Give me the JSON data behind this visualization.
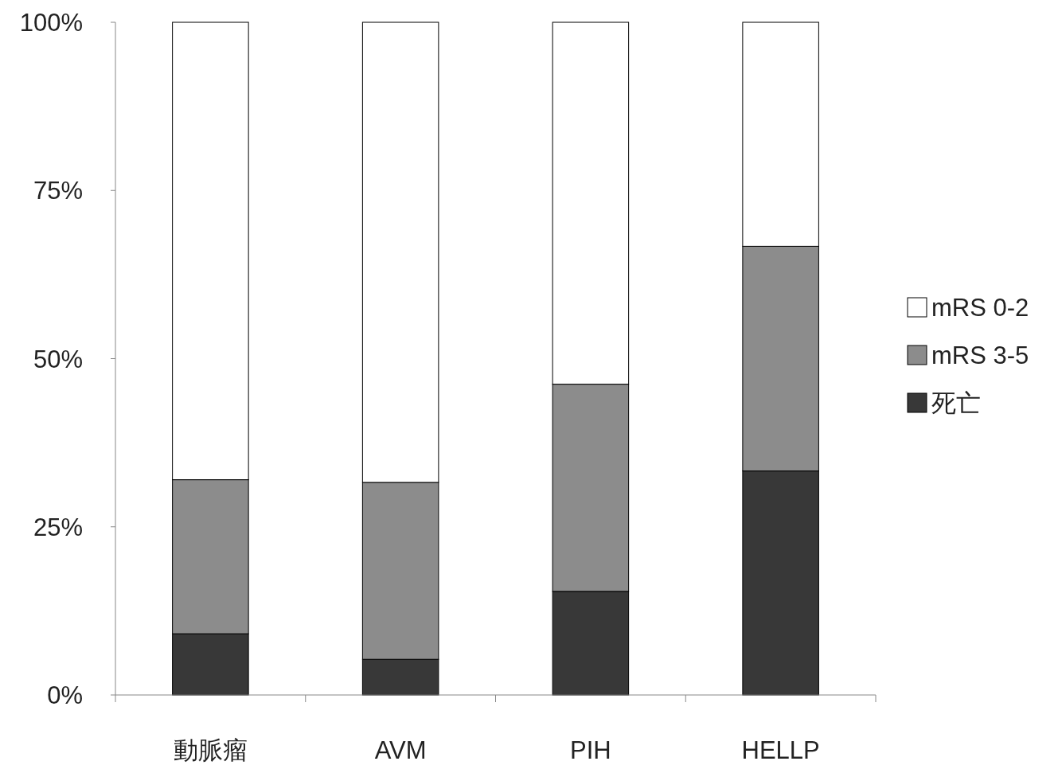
{
  "chart_data": {
    "type": "bar",
    "stacked": true,
    "categories": [
      "動脈瘤",
      "AVM",
      "PIH",
      "HELLP"
    ],
    "series": [
      {
        "name": "死亡",
        "color": "#383838",
        "values": [
          9.1,
          5.3,
          15.4,
          33.3
        ]
      },
      {
        "name": "mRS 3-5",
        "color": "#8c8c8c",
        "values": [
          22.9,
          26.3,
          30.8,
          33.4
        ]
      },
      {
        "name": "mRS 0-2",
        "color": "#ffffff",
        "values": [
          68.0,
          68.4,
          53.8,
          33.3
        ]
      }
    ],
    "ylim": [
      0,
      100
    ],
    "yticks": [
      {
        "value": 0,
        "label": "0%"
      },
      {
        "value": 25,
        "label": "25%"
      },
      {
        "value": 50,
        "label": "50%"
      },
      {
        "value": 75,
        "label": "75%"
      },
      {
        "value": 100,
        "label": "100%"
      }
    ],
    "legend": "right"
  }
}
